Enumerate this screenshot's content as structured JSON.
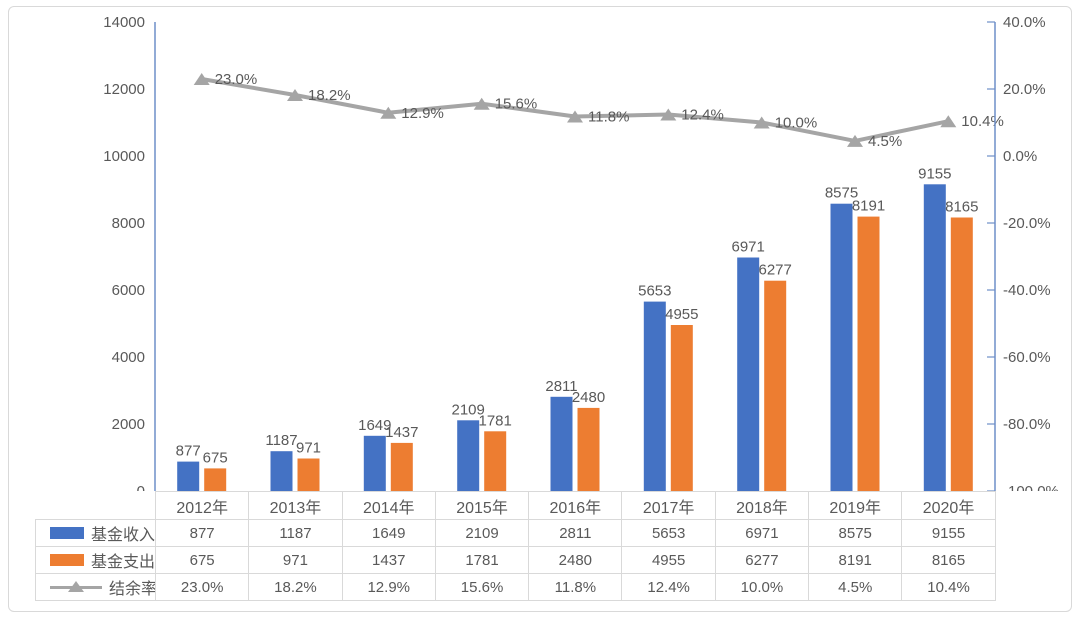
{
  "chart_data": {
    "type": "bar",
    "subtype": "bar-line-combo",
    "title": "",
    "categories": [
      "2012年",
      "2013年",
      "2014年",
      "2015年",
      "2016年",
      "2017年",
      "2018年",
      "2019年",
      "2020年"
    ],
    "series": [
      {
        "name": "基金收入",
        "chart_type": "bar",
        "color": "#4472C4",
        "axis": "left",
        "values": [
          877,
          1187,
          1649,
          2109,
          2811,
          5653,
          6971,
          8575,
          9155
        ]
      },
      {
        "name": "基金支出",
        "chart_type": "bar",
        "color": "#ED7D31",
        "axis": "left",
        "values": [
          675,
          971,
          1437,
          1781,
          2480,
          4955,
          6277,
          8191,
          8165
        ]
      },
      {
        "name": "结余率",
        "chart_type": "line",
        "color": "#A5A5A5",
        "axis": "right",
        "marker": "triangle",
        "values": [
          23.0,
          18.2,
          12.9,
          15.6,
          11.8,
          12.4,
          10.0,
          4.5,
          10.4
        ],
        "labels": [
          "23.0%",
          "18.2%",
          "12.9%",
          "15.6%",
          "11.8%",
          "12.4%",
          "10.0%",
          "4.5%",
          "10.4%"
        ]
      }
    ],
    "left_axis": {
      "min": 0,
      "max": 14000,
      "step": 2000,
      "ticks": [
        "0",
        "2000",
        "4000",
        "6000",
        "8000",
        "10000",
        "12000",
        "14000"
      ]
    },
    "right_axis": {
      "min": -100,
      "max": 40,
      "step": 20,
      "ticks": [
        "40.0%",
        "20.0%",
        "0.0%",
        "-20.0%",
        "-40.0%",
        "-60.0%",
        "-80.0%",
        "-100.0%"
      ]
    },
    "grid": false,
    "legend_position": "table-left",
    "data_labels": true
  },
  "colors": {
    "income_bar": "#4472C4",
    "expense_bar": "#ED7D31",
    "rate_line": "#A5A5A5",
    "axis_line": "#6E8FC8",
    "table_border": "#D9D9D9",
    "text": "#595959"
  }
}
